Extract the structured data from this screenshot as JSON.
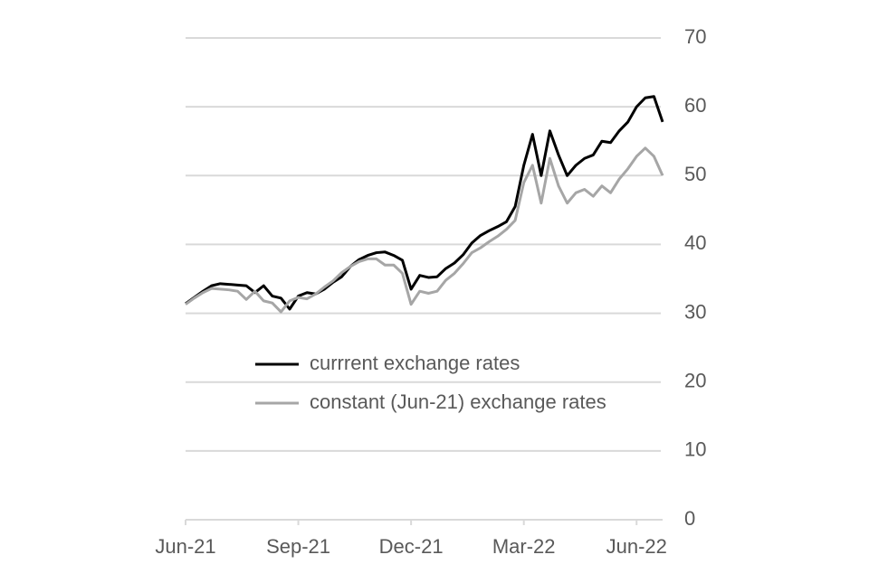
{
  "chart_data": {
    "type": "line",
    "x": [
      0,
      1,
      2,
      3,
      4,
      5,
      6,
      7,
      8,
      9,
      10,
      11,
      12,
      13,
      14,
      15,
      16,
      17,
      18,
      19,
      20,
      21,
      22,
      23,
      24,
      25,
      26,
      27,
      28,
      29,
      30,
      31,
      32,
      33,
      34,
      35,
      36,
      37,
      38,
      39,
      40,
      41,
      42,
      43,
      44,
      45,
      46,
      47,
      48,
      49,
      50,
      51,
      52,
      53,
      54,
      55
    ],
    "series": [
      {
        "name": "currrent exchange rates",
        "color": "#000000",
        "values": [
          31.4,
          32.3,
          33.2,
          34.0,
          34.3,
          34.2,
          34.1,
          34.0,
          33.0,
          34.0,
          32.5,
          32.2,
          30.6,
          32.5,
          33.0,
          32.8,
          33.5,
          34.5,
          35.3,
          36.8,
          37.8,
          38.4,
          38.8,
          38.9,
          38.4,
          37.7,
          33.5,
          35.5,
          35.2,
          35.3,
          36.5,
          37.3,
          38.5,
          40.2,
          41.3,
          42.0,
          42.6,
          43.3,
          45.5,
          51.5,
          56.0,
          50.0,
          56.5,
          53.0,
          50.0,
          51.5,
          52.5,
          53.0,
          55.0,
          54.8,
          56.5,
          57.8,
          60.0,
          61.3,
          61.5,
          57.8
        ]
      },
      {
        "name": "constant (Jun-21) exchange rates",
        "color": "#a6a6a6",
        "values": [
          31.3,
          32.2,
          33.0,
          33.6,
          33.5,
          33.4,
          33.2,
          32.0,
          33.2,
          31.8,
          31.5,
          30.2,
          31.8,
          32.3,
          32.1,
          32.8,
          33.8,
          34.7,
          35.9,
          36.8,
          37.5,
          37.9,
          37.9,
          37.0,
          37.0,
          35.8,
          31.3,
          33.2,
          32.9,
          33.2,
          34.8,
          35.8,
          37.2,
          38.8,
          39.5,
          40.4,
          41.2,
          42.2,
          43.5,
          49.0,
          51.5,
          46.0,
          52.5,
          48.5,
          46.0,
          47.5,
          48.0,
          47.0,
          48.5,
          47.5,
          49.5,
          51.0,
          52.8,
          54.0,
          52.8,
          50.0
        ]
      }
    ],
    "xlim": [
      0,
      55
    ],
    "xticks": [
      {
        "value": 0,
        "label": "Jun-21"
      },
      {
        "value": 13,
        "label": "Sep-21"
      },
      {
        "value": 26,
        "label": "Dec-21"
      },
      {
        "value": 39,
        "label": "Mar-22"
      },
      {
        "value": 52,
        "label": "Jun-22"
      }
    ],
    "ylim": [
      0,
      70
    ],
    "yticks": [
      0,
      10,
      20,
      30,
      40,
      50,
      60,
      70
    ],
    "grid": true
  }
}
